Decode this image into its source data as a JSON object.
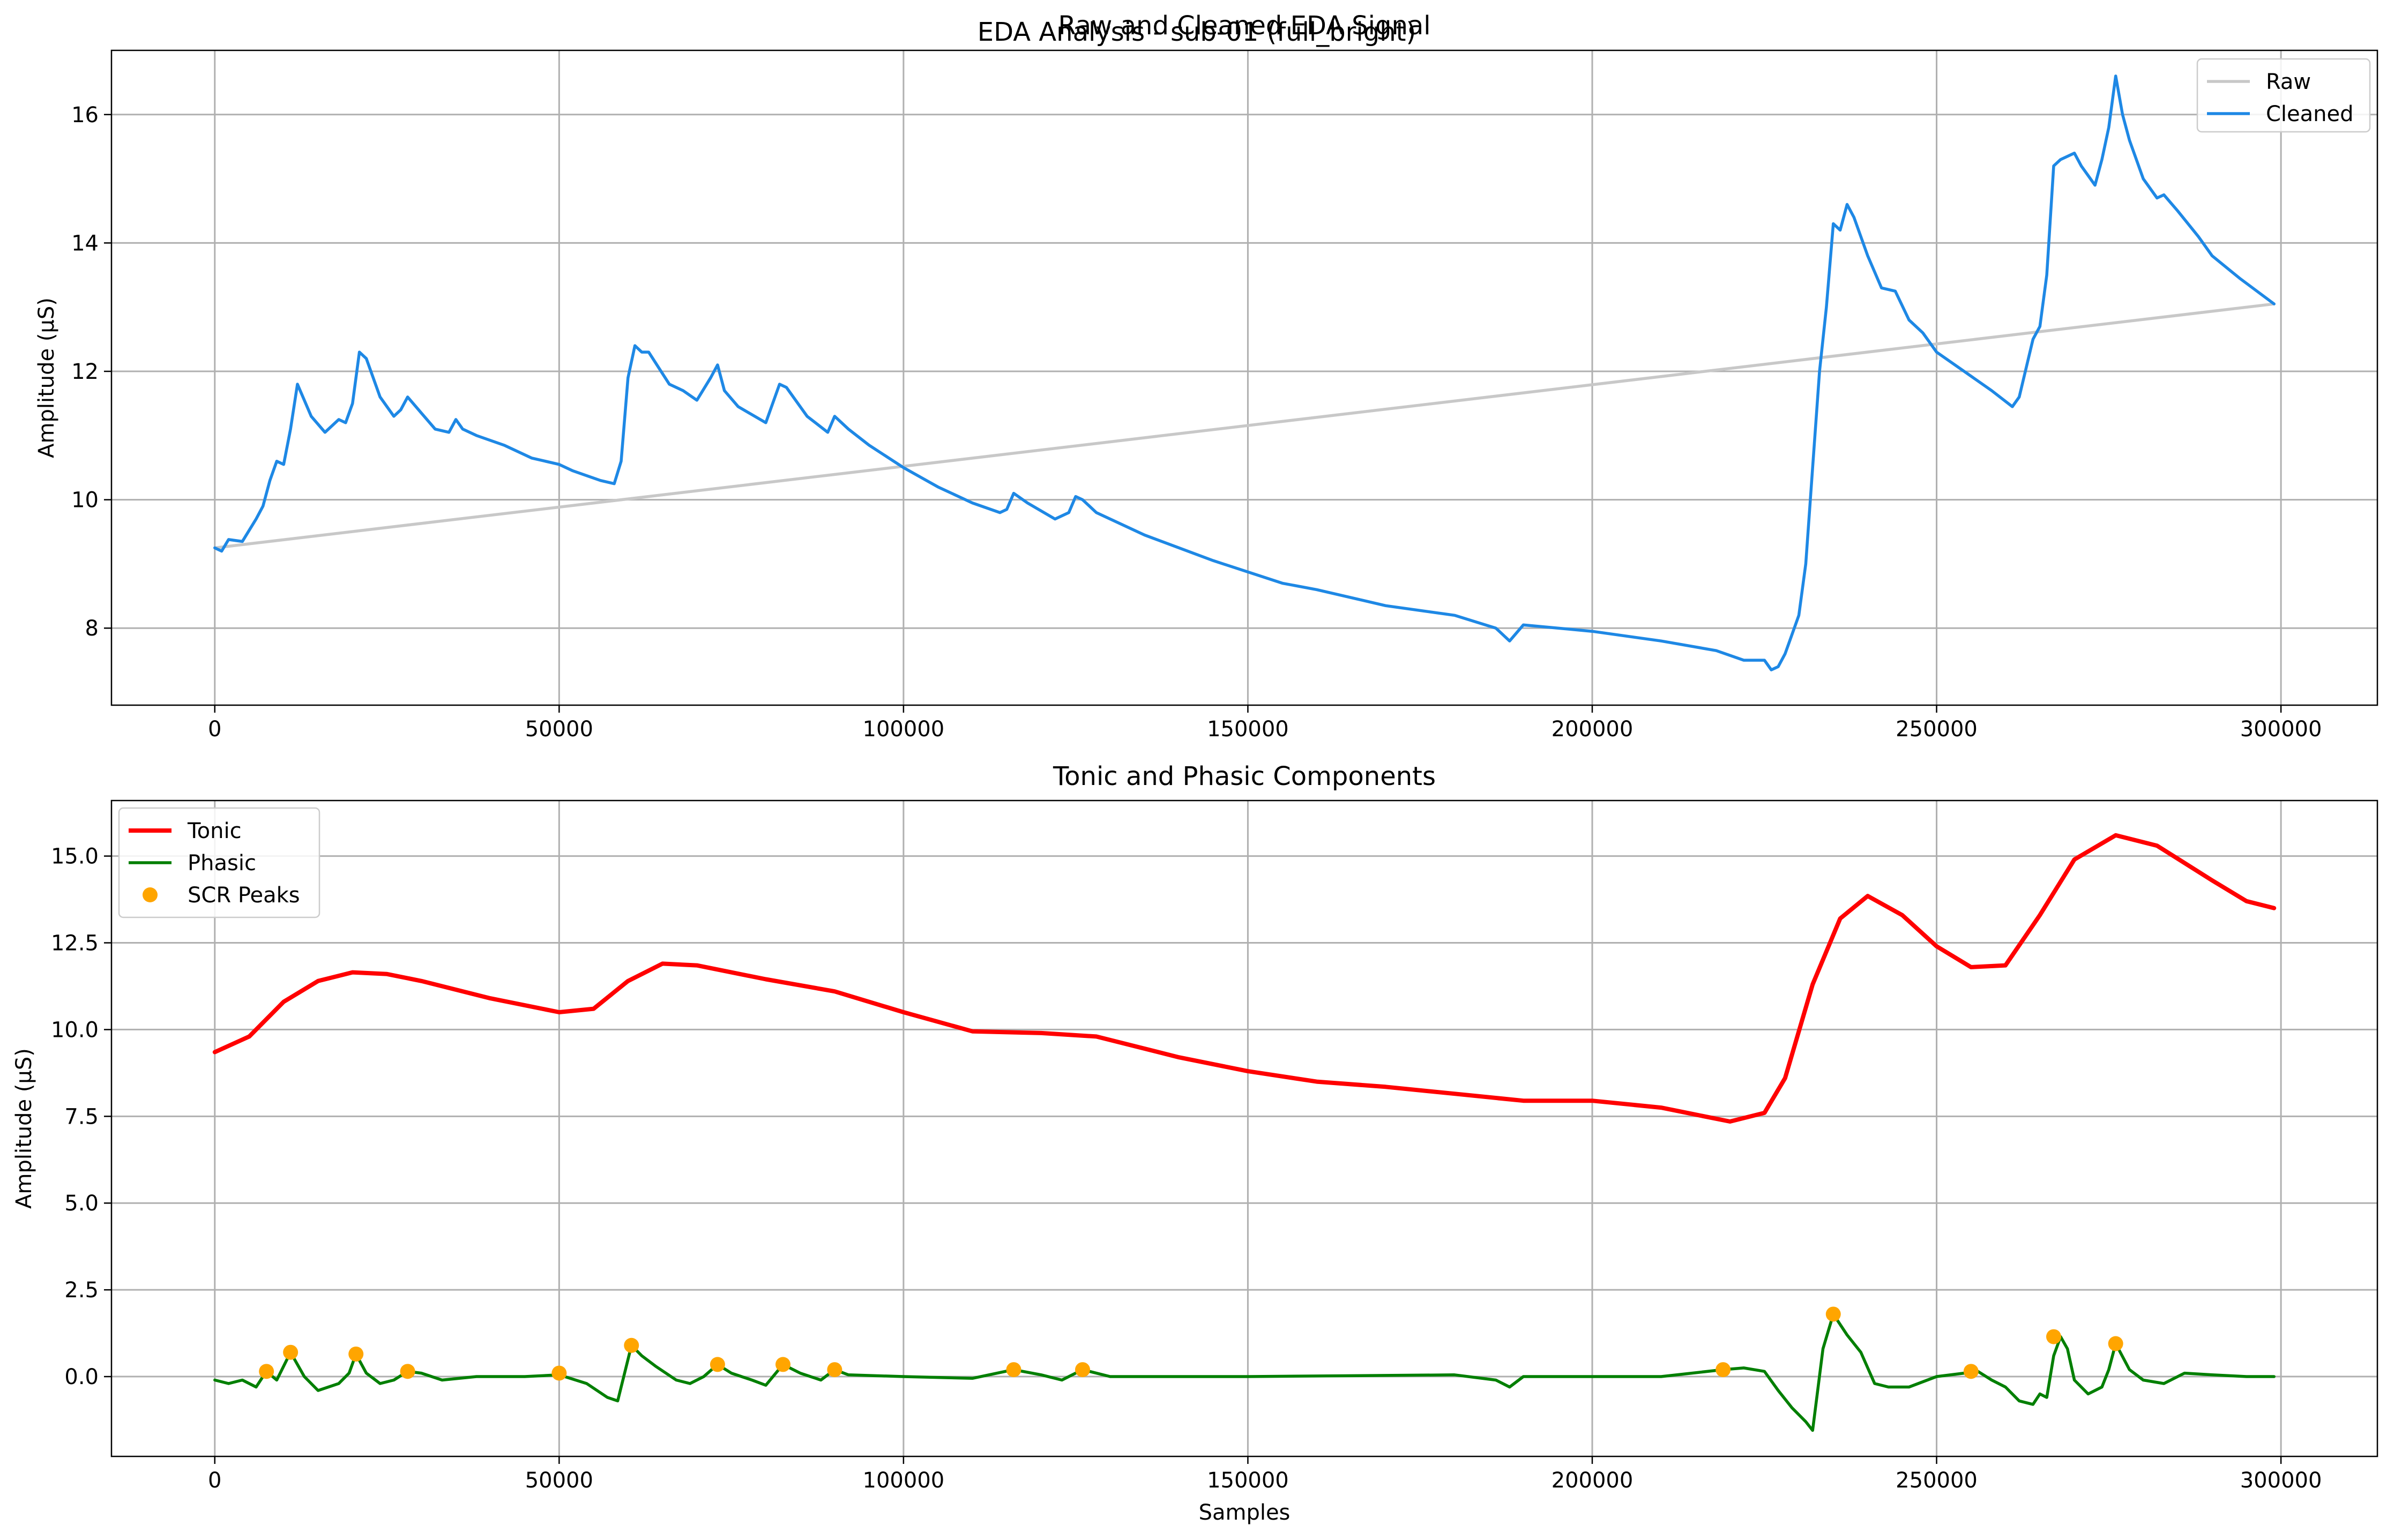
{
  "figure": {
    "suptitle": "EDA Analysis - sub-01 (full_bright)"
  },
  "chart_data": [
    {
      "type": "line",
      "title": "Raw and Cleaned EDA Signal",
      "xlabel": "",
      "ylabel": "Amplitude (µS)",
      "xlim": [
        -15000,
        314000
      ],
      "ylim": [
        6.8,
        17.0
      ],
      "xticks": [
        0,
        50000,
        100000,
        150000,
        200000,
        250000,
        300000
      ],
      "xtick_labels": [
        "0",
        "50000",
        "100000",
        "150000",
        "200000",
        "250000",
        "300000"
      ],
      "yticks": [
        8,
        10,
        12,
        14,
        16
      ],
      "ytick_labels": [
        "8",
        "10",
        "12",
        "14",
        "16"
      ],
      "grid": true,
      "legend_position": "upper right",
      "series": [
        {
          "name": "Raw",
          "color": "#c8c8c8",
          "x": [
            0,
            299000
          ],
          "y": [
            9.25,
            13.05
          ]
        },
        {
          "name": "Cleaned",
          "color": "#1e88e5",
          "x": [
            0,
            1000,
            2000,
            4000,
            6000,
            7000,
            8000,
            9000,
            10000,
            11000,
            12000,
            14000,
            16000,
            18000,
            19000,
            20000,
            21000,
            22000,
            24000,
            26000,
            27000,
            28000,
            30000,
            32000,
            34000,
            35000,
            36000,
            38000,
            42000,
            46000,
            50000,
            52000,
            56000,
            58000,
            59000,
            60000,
            61000,
            62000,
            63000,
            66000,
            68000,
            70000,
            72000,
            73000,
            74000,
            76000,
            80000,
            82000,
            83000,
            86000,
            89000,
            90000,
            92000,
            95000,
            100000,
            105000,
            110000,
            114000,
            115000,
            116000,
            118000,
            122000,
            124000,
            125000,
            126000,
            128000,
            135000,
            145000,
            155000,
            160000,
            166000,
            170000,
            180000,
            186000,
            188000,
            190000,
            200000,
            210000,
            218000,
            222000,
            225000,
            226000,
            227000,
            228000,
            229000,
            230000,
            231000,
            232000,
            233000,
            234000,
            235000,
            236000,
            237000,
            238000,
            240000,
            242000,
            244000,
            246000,
            248000,
            250000,
            254000,
            258000,
            261000,
            262000,
            264000,
            265000,
            266000,
            267000,
            268000,
            270000,
            271000,
            272000,
            273000,
            274000,
            275000,
            276000,
            277000,
            278000,
            280000,
            282000,
            283000,
            285000,
            288000,
            290000,
            294000,
            299000
          ],
          "y": [
            9.25,
            9.2,
            9.38,
            9.35,
            9.7,
            9.9,
            10.3,
            10.6,
            10.55,
            11.1,
            11.8,
            11.3,
            11.05,
            11.25,
            11.2,
            11.5,
            12.3,
            12.2,
            11.6,
            11.3,
            11.4,
            11.6,
            11.35,
            11.1,
            11.05,
            11.25,
            11.1,
            11.0,
            10.85,
            10.65,
            10.55,
            10.45,
            10.3,
            10.25,
            10.6,
            11.9,
            12.4,
            12.3,
            12.3,
            11.8,
            11.7,
            11.55,
            11.9,
            12.1,
            11.7,
            11.45,
            11.2,
            11.8,
            11.75,
            11.3,
            11.05,
            11.3,
            11.1,
            10.85,
            10.5,
            10.2,
            9.95,
            9.8,
            9.85,
            10.1,
            9.95,
            9.7,
            9.8,
            10.05,
            10.0,
            9.8,
            9.45,
            9.05,
            8.7,
            8.6,
            8.45,
            8.35,
            8.2,
            8.0,
            7.8,
            8.05,
            7.95,
            7.8,
            7.65,
            7.5,
            7.5,
            7.35,
            7.4,
            7.6,
            7.9,
            8.2,
            9.0,
            10.5,
            12.0,
            13.0,
            14.3,
            14.2,
            14.6,
            14.4,
            13.8,
            13.3,
            13.25,
            12.8,
            12.6,
            12.3,
            12.0,
            11.7,
            11.45,
            11.6,
            12.5,
            12.7,
            13.5,
            15.2,
            15.3,
            15.4,
            15.2,
            15.05,
            14.9,
            15.3,
            15.8,
            16.6,
            16.0,
            15.6,
            15.0,
            14.7,
            14.75,
            14.5,
            14.1,
            13.8,
            13.45,
            13.05
          ]
        }
      ]
    },
    {
      "type": "line",
      "title": "Tonic and Phasic Components",
      "xlabel": "Samples",
      "ylabel": "Amplitude (µS)",
      "xlim": [
        -15000,
        314000
      ],
      "ylim": [
        -2.3,
        16.6
      ],
      "xticks": [
        0,
        50000,
        100000,
        150000,
        200000,
        250000,
        300000
      ],
      "xtick_labels": [
        "0",
        "50000",
        "100000",
        "150000",
        "200000",
        "250000",
        "300000"
      ],
      "yticks": [
        0,
        2.5,
        5,
        7.5,
        10,
        12.5,
        15
      ],
      "ytick_labels": [
        "0.0",
        "2.5",
        "5.0",
        "7.5",
        "10.0",
        "12.5",
        "15.0"
      ],
      "grid": true,
      "legend_position": "upper left",
      "series": [
        {
          "name": "Tonic",
          "color": "#ff0000",
          "x": [
            0,
            5000,
            10000,
            15000,
            20000,
            25000,
            30000,
            40000,
            50000,
            55000,
            60000,
            65000,
            70000,
            75000,
            80000,
            90000,
            100000,
            110000,
            120000,
            128000,
            140000,
            150000,
            160000,
            170000,
            180000,
            190000,
            200000,
            210000,
            215000,
            220000,
            225000,
            228000,
            232000,
            236000,
            240000,
            245000,
            250000,
            255000,
            260000,
            265000,
            270000,
            276000,
            282000,
            290000,
            295000,
            299000
          ],
          "y": [
            9.35,
            9.8,
            10.8,
            11.4,
            11.65,
            11.6,
            11.4,
            10.9,
            10.5,
            10.6,
            11.4,
            11.9,
            11.85,
            11.65,
            11.45,
            11.1,
            10.5,
            9.95,
            9.9,
            9.8,
            9.2,
            8.8,
            8.5,
            8.35,
            8.15,
            7.95,
            7.95,
            7.75,
            7.55,
            7.35,
            7.6,
            8.6,
            11.3,
            13.2,
            13.85,
            13.3,
            12.4,
            11.8,
            11.85,
            13.3,
            14.9,
            15.6,
            15.3,
            14.3,
            13.7,
            13.5
          ]
        },
        {
          "name": "Phasic",
          "color": "#007f00",
          "x": [
            0,
            2000,
            4000,
            6000,
            7500,
            9000,
            11000,
            13000,
            15000,
            16500,
            18000,
            19500,
            20500,
            22000,
            24000,
            26000,
            28000,
            30000,
            33000,
            38000,
            45000,
            50000,
            54000,
            57000,
            58500,
            60500,
            62000,
            64000,
            67000,
            69000,
            71000,
            73000,
            75000,
            78000,
            80000,
            82500,
            85000,
            88000,
            90000,
            92000,
            100000,
            110000,
            116000,
            120000,
            123000,
            126000,
            130000,
            150000,
            180000,
            186000,
            188000,
            190000,
            200000,
            210000,
            219000,
            222000,
            225000,
            227000,
            229000,
            231000,
            232000,
            233500,
            235000,
            237000,
            239000,
            241000,
            243000,
            246000,
            250000,
            254000,
            256000,
            258000,
            260000,
            262000,
            264000,
            265000,
            266000,
            267000,
            268000,
            269000,
            270000,
            272000,
            274000,
            275000,
            276000,
            278000,
            280000,
            283000,
            286000,
            290000,
            295000,
            299000
          ],
          "y": [
            -0.1,
            -0.2,
            -0.1,
            -0.3,
            0.15,
            -0.1,
            0.7,
            0.0,
            -0.4,
            -0.3,
            -0.2,
            0.1,
            0.65,
            0.1,
            -0.2,
            -0.1,
            0.15,
            0.1,
            -0.1,
            0.0,
            0.0,
            0.05,
            -0.2,
            -0.6,
            -0.7,
            0.9,
            0.6,
            0.3,
            -0.1,
            -0.2,
            0.0,
            0.35,
            0.1,
            -0.1,
            -0.25,
            0.35,
            0.1,
            -0.1,
            0.2,
            0.05,
            0.0,
            -0.05,
            0.2,
            0.05,
            -0.1,
            0.2,
            0.0,
            0.0,
            0.05,
            -0.1,
            -0.3,
            0.0,
            0.0,
            0.0,
            0.2,
            0.25,
            0.15,
            -0.4,
            -0.9,
            -1.3,
            -1.55,
            0.8,
            1.8,
            1.2,
            0.7,
            -0.2,
            -0.3,
            -0.3,
            0.0,
            0.1,
            0.15,
            -0.1,
            -0.3,
            -0.7,
            -0.8,
            -0.5,
            -0.6,
            0.6,
            1.15,
            0.8,
            -0.1,
            -0.5,
            -0.3,
            0.2,
            0.95,
            0.2,
            -0.1,
            -0.2,
            0.1,
            0.05,
            0.0,
            0.0
          ]
        },
        {
          "name": "SCR Peaks",
          "color": "#ffa500",
          "marker": "circle",
          "x": [
            7500,
            11000,
            20500,
            28000,
            50000,
            60500,
            73000,
            82500,
            90000,
            116000,
            126000,
            219000,
            235000,
            255000,
            267000,
            276000
          ],
          "y": [
            0.15,
            0.7,
            0.65,
            0.15,
            0.1,
            0.9,
            0.35,
            0.35,
            0.2,
            0.2,
            0.2,
            0.2,
            1.8,
            0.15,
            1.15,
            0.95
          ]
        }
      ]
    }
  ]
}
